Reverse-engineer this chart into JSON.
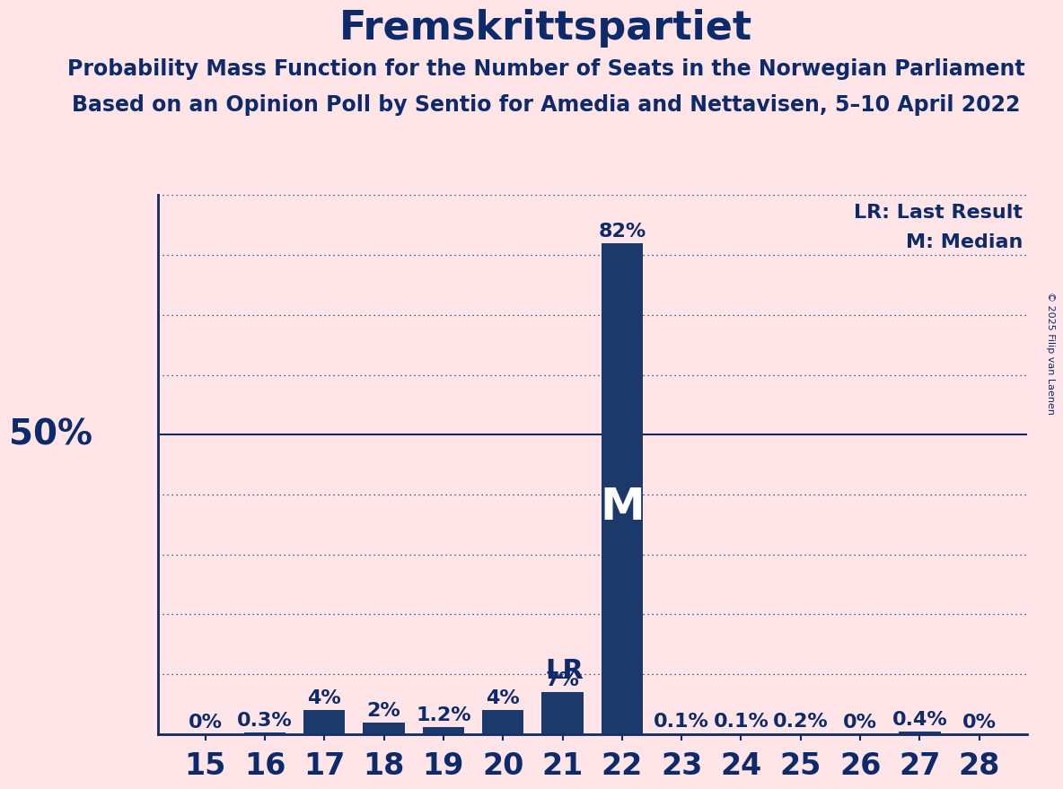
{
  "title": "Fremskrittspartiet",
  "subtitle1": "Probability Mass Function for the Number of Seats in the Norwegian Parliament",
  "subtitle2": "Based on an Opinion Poll by Sentio for Amedia and Nettavisen, 5–10 April 2022",
  "copyright": "© 2025 Filip van Laenen",
  "seats": [
    15,
    16,
    17,
    18,
    19,
    20,
    21,
    22,
    23,
    24,
    25,
    26,
    27,
    28
  ],
  "probabilities": [
    0.0,
    0.3,
    4.0,
    2.0,
    1.2,
    4.0,
    7.0,
    82.0,
    0.1,
    0.1,
    0.2,
    0.0,
    0.4,
    0.0
  ],
  "bar_color": "#1B3A6B",
  "bg_color": "#FFE4E8",
  "text_color": "#0D2B6B",
  "last_result_seat": 21,
  "median_seat": 22,
  "ylabel_50": "50%",
  "legend_lr": "LR: Last Result",
  "legend_m": "M: Median",
  "ylim": [
    0,
    90
  ],
  "label_fontsize": 16,
  "title_fontsize": 32,
  "subtitle_fontsize": 17,
  "tick_fontsize": 24,
  "bar_label_fontsize": 16,
  "lr_fontsize": 22,
  "m_fontsize": 36,
  "fifty_fontsize": 28
}
